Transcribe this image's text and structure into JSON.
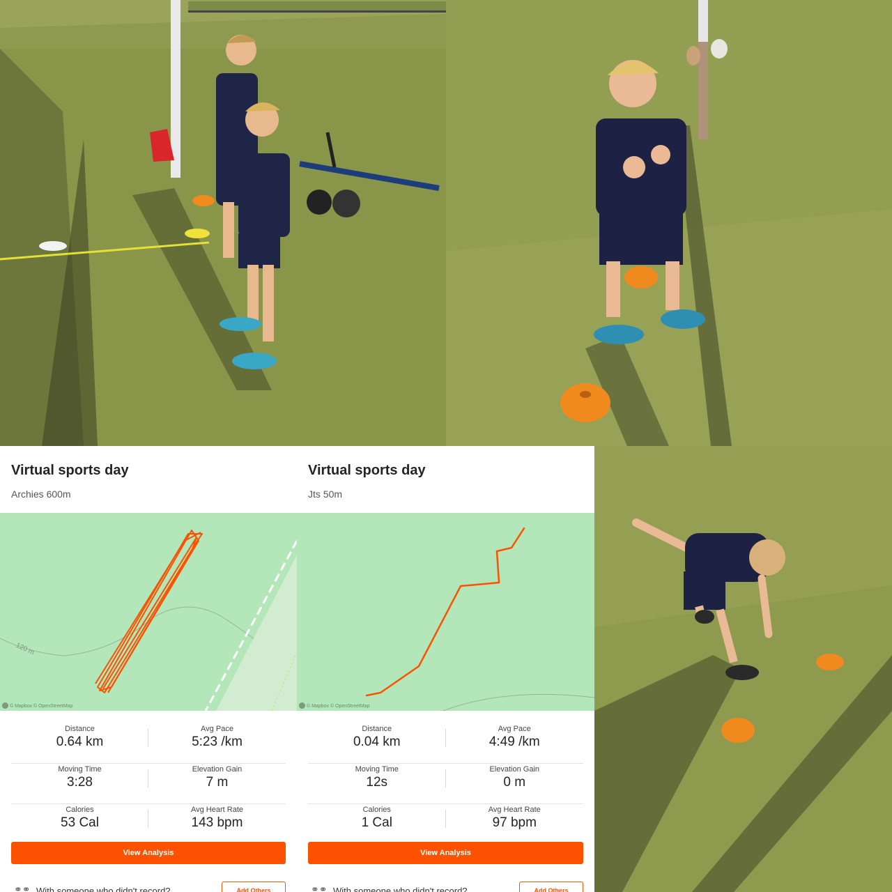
{
  "activities": [
    {
      "title": "Virtual sports day",
      "subtitle": "Archies 600m",
      "map": {
        "contour_label": "120 m",
        "credit": "© Mapbox © OpenStreetMap"
      },
      "stats": [
        {
          "label": "Distance",
          "value": "0.64 km"
        },
        {
          "label": "Avg Pace",
          "value": "5:23 /km"
        },
        {
          "label": "Moving Time",
          "value": "3:28"
        },
        {
          "label": "Elevation Gain",
          "value": "7 m"
        },
        {
          "label": "Calories",
          "value": "53 Cal"
        },
        {
          "label": "Avg Heart Rate",
          "value": "143 bpm"
        }
      ],
      "view_analysis_label": "View Analysis",
      "with_someone_text": "With someone who didn't record?",
      "add_others_label": "Add Others"
    },
    {
      "title": "Virtual sports day",
      "subtitle": "Jts 50m",
      "map": {
        "credit": "© Mapbox © OpenStreetMap"
      },
      "stats": [
        {
          "label": "Distance",
          "value": "0.04 km"
        },
        {
          "label": "Avg Pace",
          "value": "4:49 /km"
        },
        {
          "label": "Moving Time",
          "value": "12s"
        },
        {
          "label": "Elevation Gain",
          "value": "0 m"
        },
        {
          "label": "Calories",
          "value": "1 Cal"
        },
        {
          "label": "Avg Heart Rate",
          "value": "97 bpm"
        }
      ],
      "view_analysis_label": "View Analysis",
      "with_someone_text": "With someone who didn't record?",
      "add_others_label": "Add Others"
    }
  ],
  "colors": {
    "accent": "#fc5200",
    "map_bg": "#b3e6b8",
    "route": "#fc5200",
    "grass": "#8a9a4e"
  },
  "icons": {
    "with_someone": "people-icon"
  }
}
